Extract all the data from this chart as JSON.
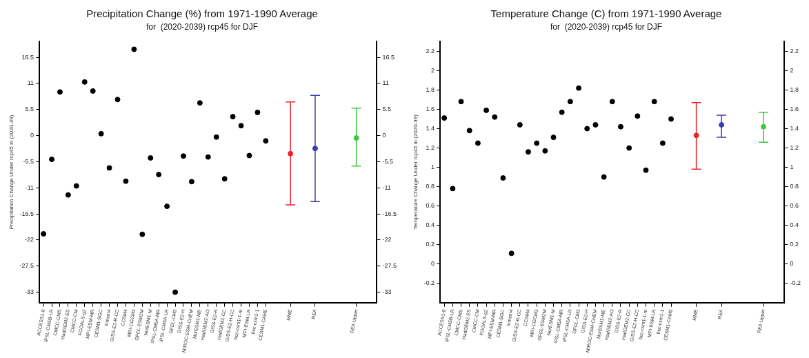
{
  "chart_data": [
    {
      "type": "scatter",
      "title": "Precipitation Change (%) from 1971-1990 Average",
      "subtitle": "for  (2020-2039) rcp45 for DJF",
      "ylabel": "Precipitation Change Under rcp45 in (2020-39)",
      "categories": [
        "ACCESS1-0",
        "IPSL-CM5B-LR",
        "CMCC-CMS",
        "HadGEM2-ES",
        "CMCC-CM",
        "FGOALS-g2",
        "MPI-ESM-MR",
        "CESM1-BGC",
        "inmcm4",
        "GISS-E2-R-CC",
        "CCSM4",
        "MRI-CGCM3",
        "GFDL-ESM2M",
        "NorESM1-M",
        "IPSL-CM5A-MR",
        "IPSL-CM5A-LR",
        "GFDL-CM3",
        "GISS-E2-H",
        "MIROC-ESM-CHEM",
        "NorESM1-ME",
        "HadGEM2-AO",
        "GISS-E2-R",
        "HadGEM2-CC",
        "GISS-E2-H-CC",
        "bcc-csm1-1-m",
        "MPI-ESM-LR",
        "bcc-csm1-1",
        "CESM1-CAM5",
        null,
        null,
        "MME",
        null,
        null,
        "REA",
        null,
        null,
        null,
        null,
        "REA Upper",
        null,
        null
      ],
      "series": [
        {
          "color": "#000000",
          "values": [
            -20.7,
            -5.0,
            9.2,
            -12.5,
            -10.6,
            11.3,
            9.4,
            0.4,
            -6.8,
            7.6,
            -9.6,
            18.2,
            -20.8,
            -4.7,
            -8.2,
            -14.9,
            -33,
            -4.3,
            -9.7,
            6.9,
            -4.5,
            -0.3,
            -9.1,
            4.0,
            2.1,
            -4.2,
            4.9,
            -1.1,
            null,
            null,
            null,
            null,
            null,
            null,
            null,
            null,
            null,
            null,
            null,
            null,
            null
          ]
        },
        {
          "color": "#e8262a",
          "values": [
            null,
            null,
            null,
            null,
            null,
            null,
            null,
            null,
            null,
            null,
            null,
            null,
            null,
            null,
            null,
            null,
            null,
            null,
            null,
            null,
            null,
            null,
            null,
            null,
            null,
            null,
            null,
            null,
            null,
            null,
            -3.8,
            null,
            null,
            null,
            null,
            null,
            null,
            null,
            null,
            null,
            null
          ],
          "errors": [
            null,
            null,
            null,
            null,
            null,
            null,
            null,
            null,
            null,
            null,
            null,
            null,
            null,
            null,
            null,
            null,
            null,
            null,
            null,
            null,
            null,
            null,
            null,
            null,
            null,
            null,
            null,
            null,
            null,
            null,
            [
              -14.6,
              7.1
            ],
            null,
            null,
            null,
            null,
            null,
            null,
            null,
            null,
            null,
            null
          ]
        },
        {
          "color": "#3c3cb4",
          "values": [
            null,
            null,
            null,
            null,
            null,
            null,
            null,
            null,
            null,
            null,
            null,
            null,
            null,
            null,
            null,
            null,
            null,
            null,
            null,
            null,
            null,
            null,
            null,
            null,
            null,
            null,
            null,
            null,
            null,
            null,
            null,
            null,
            null,
            -2.7,
            null,
            null,
            null,
            null,
            null,
            null,
            null
          ],
          "errors": [
            null,
            null,
            null,
            null,
            null,
            null,
            null,
            null,
            null,
            null,
            null,
            null,
            null,
            null,
            null,
            null,
            null,
            null,
            null,
            null,
            null,
            null,
            null,
            null,
            null,
            null,
            null,
            null,
            null,
            null,
            null,
            null,
            null,
            [
              -13.9,
              8.5
            ],
            null,
            null,
            null,
            null,
            null,
            null,
            null
          ]
        },
        {
          "color": "#3cc83c",
          "values": [
            null,
            null,
            null,
            null,
            null,
            null,
            null,
            null,
            null,
            null,
            null,
            null,
            null,
            null,
            null,
            null,
            null,
            null,
            null,
            null,
            null,
            null,
            null,
            null,
            null,
            null,
            null,
            null,
            null,
            null,
            null,
            null,
            null,
            null,
            null,
            null,
            null,
            null,
            -0.5,
            null,
            null
          ],
          "errors": [
            null,
            null,
            null,
            null,
            null,
            null,
            null,
            null,
            null,
            null,
            null,
            null,
            null,
            null,
            null,
            null,
            null,
            null,
            null,
            null,
            null,
            null,
            null,
            null,
            null,
            null,
            null,
            null,
            null,
            null,
            null,
            null,
            null,
            null,
            null,
            null,
            null,
            null,
            [
              -6.4,
              5.8
            ],
            null,
            null
          ]
        }
      ],
      "ylim": [
        -35.2,
        19.8
      ],
      "yticks": [
        -33,
        -27.5,
        -22,
        -16.5,
        -11,
        -5.5,
        0,
        5.5,
        11,
        16.5
      ],
      "y2lim": [
        -35.2,
        19.8
      ],
      "y2ticks": [
        -33,
        -27.5,
        -22,
        -16.5,
        -11,
        -5.5,
        0,
        5.5,
        11,
        16.5
      ],
      "marker": "circle"
    },
    {
      "type": "scatter",
      "title": "Temperature Change (C) from 1971-1990 Average",
      "subtitle": "for  (2020-2039) rcp45 for DJF",
      "ylabel": "Temperature Change Under rcp45 in (2020-39)",
      "categories": [
        "ACCESS1-0",
        "IPSL-CM5B-LR",
        "CMCC-CMS",
        "HadGEM2-ES",
        "CMCC-CM",
        "FGOALS-g2",
        "MPI-ESM-MR",
        "CESM1-BGC",
        "inmcm4",
        "GISS-E2-R-CC",
        "CCSM4",
        "MRI-CGCM3",
        "GFDL-ESM2M",
        "NorESM1-M",
        "IPSL-CM5A-MR",
        "IPSL-CM5A-LR",
        "GFDL-CM3",
        "GISS-E2-H",
        "MIROC-ESM-CHEM",
        "NorESM1-ME",
        "HadGEM2-AO",
        "GISS-E2-R",
        "HadGEM2-CC",
        "GISS-E2-H-CC",
        "bcc-csm1-1-m",
        "MPI-ESM-LR",
        "bcc-csm1-1",
        "CESM1-CAM5",
        null,
        null,
        "MME",
        null,
        null,
        "REA",
        null,
        null,
        null,
        null,
        "REA Upper",
        null,
        null
      ],
      "series": [
        {
          "color": "#000000",
          "values": [
            1.51,
            0.78,
            1.68,
            1.38,
            1.25,
            1.59,
            1.52,
            0.89,
            0.11,
            1.44,
            1.16,
            1.25,
            1.17,
            1.31,
            1.57,
            1.68,
            1.82,
            1.4,
            1.44,
            0.9,
            1.68,
            1.42,
            1.2,
            1.53,
            0.97,
            1.68,
            1.25,
            1.5,
            null,
            null,
            null,
            null,
            null,
            null,
            null,
            null,
            null,
            null,
            null,
            null,
            null
          ]
        },
        {
          "color": "#e8262a",
          "values": [
            null,
            null,
            null,
            null,
            null,
            null,
            null,
            null,
            null,
            null,
            null,
            null,
            null,
            null,
            null,
            null,
            null,
            null,
            null,
            null,
            null,
            null,
            null,
            null,
            null,
            null,
            null,
            null,
            null,
            null,
            1.33,
            null,
            null,
            null,
            null,
            null,
            null,
            null,
            null,
            null,
            null
          ],
          "errors": [
            null,
            null,
            null,
            null,
            null,
            null,
            null,
            null,
            null,
            null,
            null,
            null,
            null,
            null,
            null,
            null,
            null,
            null,
            null,
            null,
            null,
            null,
            null,
            null,
            null,
            null,
            null,
            null,
            null,
            null,
            [
              0.98,
              1.67
            ],
            null,
            null,
            null,
            null,
            null,
            null,
            null,
            null,
            null,
            null
          ]
        },
        {
          "color": "#3c3cb4",
          "values": [
            null,
            null,
            null,
            null,
            null,
            null,
            null,
            null,
            null,
            null,
            null,
            null,
            null,
            null,
            null,
            null,
            null,
            null,
            null,
            null,
            null,
            null,
            null,
            null,
            null,
            null,
            null,
            null,
            null,
            null,
            null,
            null,
            null,
            1.44,
            null,
            null,
            null,
            null,
            null,
            null,
            null
          ],
          "errors": [
            null,
            null,
            null,
            null,
            null,
            null,
            null,
            null,
            null,
            null,
            null,
            null,
            null,
            null,
            null,
            null,
            null,
            null,
            null,
            null,
            null,
            null,
            null,
            null,
            null,
            null,
            null,
            null,
            null,
            null,
            null,
            null,
            null,
            [
              1.31,
              1.54
            ],
            null,
            null,
            null,
            null,
            null,
            null,
            null
          ]
        },
        {
          "color": "#3cc83c",
          "values": [
            null,
            null,
            null,
            null,
            null,
            null,
            null,
            null,
            null,
            null,
            null,
            null,
            null,
            null,
            null,
            null,
            null,
            null,
            null,
            null,
            null,
            null,
            null,
            null,
            null,
            null,
            null,
            null,
            null,
            null,
            null,
            null,
            null,
            null,
            null,
            null,
            null,
            null,
            1.42,
            null,
            null
          ],
          "errors": [
            null,
            null,
            null,
            null,
            null,
            null,
            null,
            null,
            null,
            null,
            null,
            null,
            null,
            null,
            null,
            null,
            null,
            null,
            null,
            null,
            null,
            null,
            null,
            null,
            null,
            null,
            null,
            null,
            null,
            null,
            null,
            null,
            null,
            null,
            null,
            null,
            null,
            null,
            [
              1.26,
              1.57
            ],
            null,
            null
          ]
        }
      ],
      "ylim": [
        -0.4,
        2.3
      ],
      "yticks": [
        -0.2,
        0,
        0.2,
        0.4,
        0.6,
        0.8,
        1,
        1.2,
        1.4,
        1.6,
        1.8,
        2,
        2.2
      ],
      "y2lim": [
        -0.4,
        2.3
      ],
      "y2ticks": [
        -0.2,
        0,
        0.2,
        0.4,
        0.6,
        0.8,
        1,
        1.2,
        1.4,
        1.6,
        1.8,
        2,
        2.2
      ],
      "marker": "circle"
    }
  ]
}
